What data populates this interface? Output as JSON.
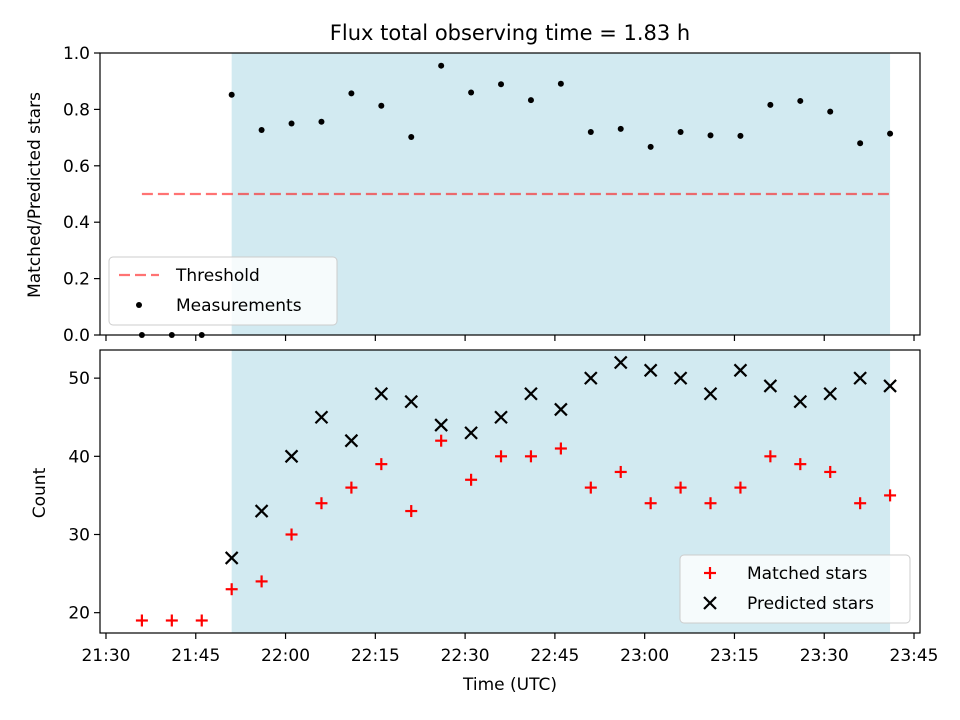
{
  "chart_data": {
    "title": "Flux total observing time = 1.83 h",
    "xlabel": "Time (UTC)",
    "x_tick_labels": [
      "21:30",
      "21:45",
      "22:00",
      "22:15",
      "22:30",
      "22:45",
      "23:00",
      "23:15",
      "23:30",
      "23:45"
    ],
    "times": [
      "21:36",
      "21:41",
      "21:46",
      "21:51",
      "21:56",
      "22:01",
      "22:06",
      "22:11",
      "22:16",
      "22:21",
      "22:26",
      "22:31",
      "22:36",
      "22:41",
      "22:46",
      "22:51",
      "22:56",
      "23:01",
      "23:06",
      "23:11",
      "23:16",
      "23:21",
      "23:26",
      "23:31",
      "23:36",
      "23:41"
    ],
    "shaded_span": [
      "21:51",
      "23:41"
    ],
    "colors": {
      "shade": "#add8e6",
      "threshold": "#ff0000",
      "matched": "#ff0000",
      "predicted": "#000000",
      "measurements": "#000000"
    },
    "panels": [
      {
        "type": "scatter",
        "ylabel": "Matched/Predicted stars",
        "ylim": [
          0,
          1.0
        ],
        "y_ticks": [
          "0.0",
          "0.2",
          "0.4",
          "0.6",
          "0.8",
          "1.0"
        ],
        "legend_position": "lower-left",
        "threshold": {
          "name": "Threshold",
          "value": 0.5,
          "x_start": "21:36",
          "x_end": "23:41"
        },
        "series": [
          {
            "name": "Measurements",
            "marker": "dot",
            "values": [
              0.0,
              0.0,
              0.0,
              0.852,
              0.727,
              0.75,
              0.756,
              0.857,
              0.813,
              0.702,
              0.955,
              0.86,
              0.889,
              0.833,
              0.891,
              0.72,
              0.731,
              0.667,
              0.72,
              0.708,
              0.706,
              0.816,
              0.83,
              0.792,
              0.68,
              0.714
            ]
          }
        ]
      },
      {
        "type": "scatter",
        "ylabel": "Count",
        "ylim": [
          17.4,
          53.6
        ],
        "y_ticks": [
          "20",
          "30",
          "40",
          "50"
        ],
        "legend_position": "lower-right",
        "series": [
          {
            "name": "Matched stars",
            "marker": "plus",
            "values": [
              19,
              19,
              19,
              23,
              24,
              30,
              34,
              36,
              39,
              33,
              42,
              37,
              40,
              40,
              41,
              36,
              38,
              34,
              36,
              34,
              36,
              40,
              39,
              38,
              34,
              35
            ]
          },
          {
            "name": "Predicted stars",
            "marker": "x",
            "values": [
              null,
              null,
              null,
              27,
              33,
              40,
              45,
              42,
              48,
              47,
              44,
              43,
              45,
              48,
              46,
              50,
              52,
              51,
              50,
              48,
              51,
              49,
              47,
              48,
              50,
              49
            ]
          }
        ]
      }
    ]
  }
}
